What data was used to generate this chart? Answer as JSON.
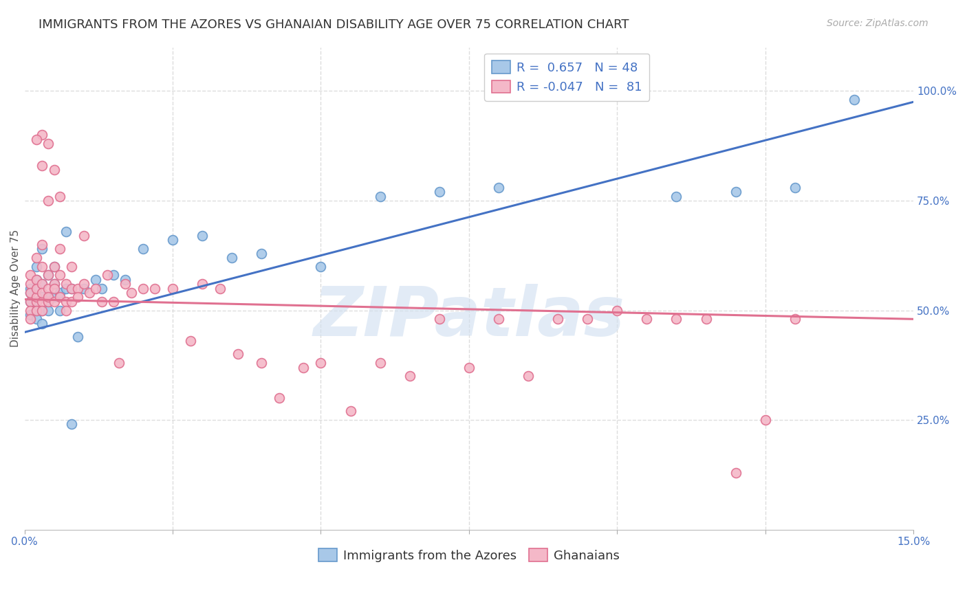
{
  "title": "IMMIGRANTS FROM THE AZORES VS GHANAIAN DISABILITY AGE OVER 75 CORRELATION CHART",
  "source": "Source: ZipAtlas.com",
  "ylabel": "Disability Age Over 75",
  "xlim": [
    0.0,
    0.15
  ],
  "ylim": [
    0.0,
    1.1
  ],
  "xtick_positions": [
    0.0,
    0.025,
    0.05,
    0.075,
    0.1,
    0.125,
    0.15
  ],
  "xticklabels": [
    "0.0%",
    "",
    "",
    "",
    "",
    "",
    "15.0%"
  ],
  "right_ytick_positions": [
    0.25,
    0.5,
    0.75,
    1.0
  ],
  "right_yticklabels": [
    "25.0%",
    "50.0%",
    "75.0%",
    "100.0%"
  ],
  "blue_face_color": "#a8c8e8",
  "blue_edge_color": "#6699cc",
  "pink_face_color": "#f4b8c8",
  "pink_edge_color": "#e07090",
  "blue_line_color": "#4472c4",
  "pink_line_color": "#e07090",
  "legend_label_blue": "Immigrants from the Azores",
  "legend_label_pink": "Ghanaians",
  "watermark": "ZIPatlas",
  "background_color": "#ffffff",
  "grid_color": "#dddddd",
  "title_fontsize": 13,
  "axis_label_fontsize": 11,
  "tick_fontsize": 11,
  "legend_fontsize": 13,
  "blue_line_x0": 0.0,
  "blue_line_y0": 0.45,
  "blue_line_x1": 0.15,
  "blue_line_y1": 0.975,
  "pink_line_x0": 0.0,
  "pink_line_y0": 0.525,
  "pink_line_x1": 0.15,
  "pink_line_y1": 0.48,
  "blue_x": [
    0.001,
    0.001,
    0.001,
    0.001,
    0.002,
    0.002,
    0.002,
    0.002,
    0.002,
    0.002,
    0.003,
    0.003,
    0.003,
    0.003,
    0.003,
    0.004,
    0.004,
    0.004,
    0.004,
    0.005,
    0.005,
    0.005,
    0.006,
    0.006,
    0.007,
    0.007,
    0.008,
    0.009,
    0.01,
    0.012,
    0.013,
    0.015,
    0.017,
    0.02,
    0.025,
    0.03,
    0.035,
    0.04,
    0.05,
    0.06,
    0.07,
    0.08,
    0.095,
    0.11,
    0.12,
    0.13,
    0.14,
    0.008
  ],
  "blue_y": [
    0.52,
    0.55,
    0.49,
    0.54,
    0.5,
    0.57,
    0.52,
    0.48,
    0.55,
    0.6,
    0.53,
    0.56,
    0.5,
    0.47,
    0.64,
    0.52,
    0.58,
    0.53,
    0.5,
    0.56,
    0.53,
    0.6,
    0.54,
    0.5,
    0.55,
    0.68,
    0.55,
    0.44,
    0.55,
    0.57,
    0.55,
    0.58,
    0.57,
    0.64,
    0.66,
    0.67,
    0.62,
    0.63,
    0.6,
    0.76,
    0.77,
    0.78,
    1.01,
    0.76,
    0.77,
    0.78,
    0.98,
    0.24
  ],
  "pink_x": [
    0.001,
    0.001,
    0.001,
    0.001,
    0.001,
    0.001,
    0.002,
    0.002,
    0.002,
    0.002,
    0.002,
    0.002,
    0.003,
    0.003,
    0.003,
    0.003,
    0.003,
    0.003,
    0.004,
    0.004,
    0.004,
    0.004,
    0.005,
    0.005,
    0.005,
    0.005,
    0.006,
    0.006,
    0.006,
    0.007,
    0.007,
    0.007,
    0.008,
    0.008,
    0.008,
    0.009,
    0.009,
    0.01,
    0.01,
    0.011,
    0.012,
    0.013,
    0.014,
    0.015,
    0.016,
    0.017,
    0.018,
    0.02,
    0.022,
    0.025,
    0.028,
    0.03,
    0.033,
    0.036,
    0.04,
    0.043,
    0.047,
    0.05,
    0.055,
    0.06,
    0.065,
    0.07,
    0.075,
    0.08,
    0.085,
    0.09,
    0.095,
    0.1,
    0.105,
    0.11,
    0.115,
    0.12,
    0.125,
    0.13,
    0.004,
    0.005,
    0.006,
    0.003,
    0.004,
    0.002,
    0.003
  ],
  "pink_y": [
    0.52,
    0.56,
    0.5,
    0.54,
    0.58,
    0.48,
    0.52,
    0.57,
    0.53,
    0.5,
    0.55,
    0.62,
    0.52,
    0.56,
    0.5,
    0.54,
    0.6,
    0.65,
    0.52,
    0.55,
    0.53,
    0.58,
    0.52,
    0.56,
    0.6,
    0.55,
    0.53,
    0.58,
    0.64,
    0.52,
    0.56,
    0.5,
    0.55,
    0.52,
    0.6,
    0.55,
    0.53,
    0.56,
    0.67,
    0.54,
    0.55,
    0.52,
    0.58,
    0.52,
    0.38,
    0.56,
    0.54,
    0.55,
    0.55,
    0.55,
    0.43,
    0.56,
    0.55,
    0.4,
    0.38,
    0.3,
    0.37,
    0.38,
    0.27,
    0.38,
    0.35,
    0.48,
    0.37,
    0.48,
    0.35,
    0.48,
    0.48,
    0.5,
    0.48,
    0.48,
    0.48,
    0.13,
    0.25,
    0.48,
    0.88,
    0.82,
    0.76,
    0.9,
    0.75,
    0.89,
    0.83
  ]
}
